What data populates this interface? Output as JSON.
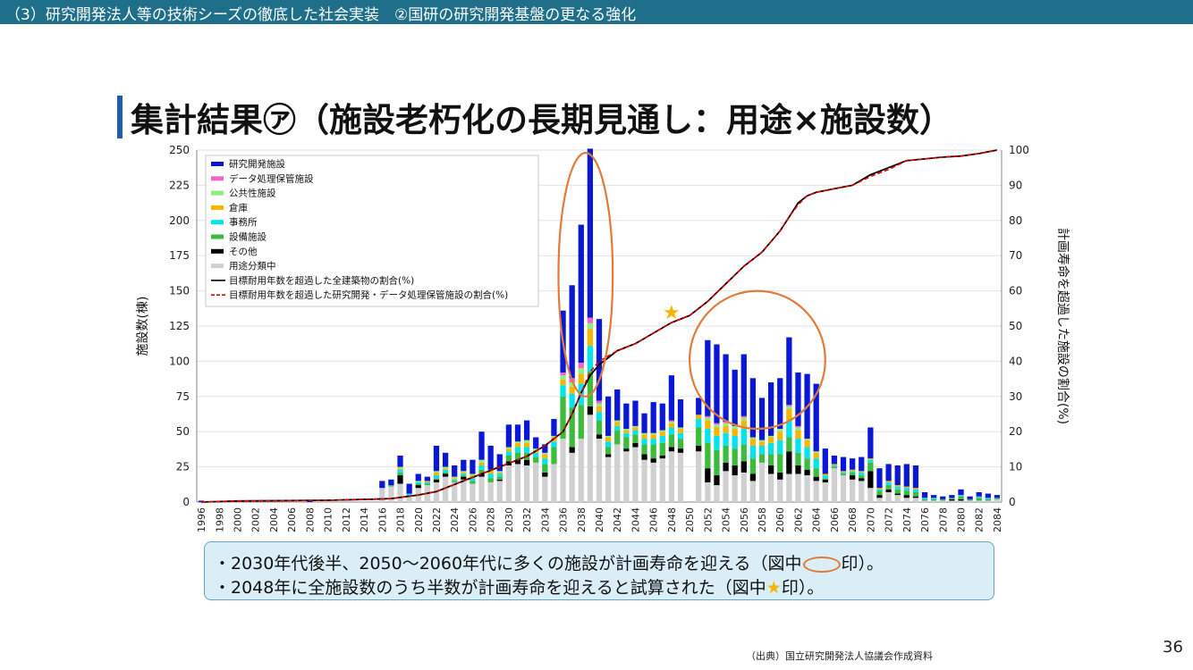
{
  "header": {
    "text": "（3）研究開発法人等の技術シーズの徹底した社会実装　②国研の研究開発基盤の更なる強化"
  },
  "title": "集計結果㋐（施設老朽化の長期見通し：用途×施設数）",
  "note": {
    "line1_a": "・2030年代後半、2050～2060年代に多くの施設が計画寿命を迎える（図中",
    "line1_b": "印）。",
    "line2_a": "・2048年に全施設数のうち半数が計画寿命を迎えると試算された（図中",
    "line2_star": "★",
    "line2_b": "印）。"
  },
  "source": "（出典）国立研究開発法人協議会作成資料",
  "page_number": "36",
  "colors": {
    "header_bg": "#1f6f8b",
    "title_accent": "#1f5fa8",
    "note_bg": "#d9eef7",
    "highlight_oval": "#e07b39",
    "star": "#f2b600"
  },
  "chart_data": {
    "type": "bar",
    "stacked": true,
    "ylabel": "施設数(棟)",
    "y2label": "計画寿命を超過した施設の割合(%)",
    "ylim": [
      0,
      250
    ],
    "y2lim": [
      0,
      100
    ],
    "yticks": [
      0,
      25,
      50,
      75,
      100,
      125,
      150,
      175,
      200,
      225,
      250
    ],
    "y2ticks": [
      0,
      10,
      20,
      30,
      40,
      50,
      60,
      70,
      80,
      90,
      100
    ],
    "grid": true,
    "legend_position": "top-left",
    "x": [
      1996,
      1997,
      1998,
      1999,
      2000,
      2001,
      2002,
      2003,
      2004,
      2005,
      2006,
      2007,
      2008,
      2009,
      2010,
      2011,
      2012,
      2013,
      2014,
      2015,
      2016,
      2017,
      2018,
      2019,
      2020,
      2021,
      2022,
      2023,
      2024,
      2025,
      2026,
      2027,
      2028,
      2029,
      2030,
      2031,
      2032,
      2033,
      2034,
      2035,
      2036,
      2037,
      2038,
      2039,
      2040,
      2041,
      2042,
      2043,
      2044,
      2045,
      2046,
      2047,
      2048,
      2049,
      2050,
      2051,
      2052,
      2053,
      2054,
      2055,
      2056,
      2057,
      2058,
      2059,
      2060,
      2061,
      2062,
      2063,
      2064,
      2065,
      2066,
      2067,
      2068,
      2069,
      2070,
      2071,
      2072,
      2073,
      2074,
      2075,
      2076,
      2077,
      2078,
      2079,
      2080,
      2081,
      2082,
      2083,
      2084
    ],
    "series": [
      {
        "name": "研究開発施設",
        "color": "#0a18d6",
        "values": [
          1,
          0,
          0,
          0,
          0,
          0,
          0,
          0,
          0,
          0,
          0,
          0,
          1,
          0,
          0,
          0,
          0,
          0,
          0,
          0,
          5,
          4,
          8,
          7,
          5,
          3,
          18,
          10,
          8,
          8,
          10,
          20,
          17,
          12,
          16,
          12,
          14,
          8,
          6,
          12,
          44,
          66,
          98,
          120,
          58,
          28,
          22,
          18,
          18,
          14,
          22,
          19,
          32,
          20,
          0,
          12,
          54,
          56,
          48,
          40,
          44,
          42,
          30,
          38,
          36,
          48,
          38,
          46,
          48,
          18,
          6,
          10,
          8,
          10,
          22,
          14,
          12,
          14,
          16,
          16,
          4,
          2,
          2,
          2,
          4,
          2,
          3,
          3,
          2
        ]
      },
      {
        "name": "データ処理保管施設",
        "color": "#ee66cc",
        "values": [
          0,
          0,
          0,
          0,
          0,
          0,
          0,
          0,
          0,
          0,
          0,
          0,
          0,
          0,
          0,
          0,
          0,
          0,
          0,
          0,
          0,
          0,
          0,
          0,
          0,
          0,
          0,
          0,
          0,
          0,
          0,
          0,
          0,
          0,
          0,
          0,
          0,
          0,
          0,
          0,
          2,
          3,
          4,
          4,
          2,
          0,
          0,
          0,
          0,
          0,
          0,
          0,
          1,
          0,
          0,
          0,
          1,
          1,
          1,
          0,
          1,
          0,
          0,
          0,
          0,
          1,
          1,
          0,
          0,
          0,
          0,
          0,
          0,
          0,
          0,
          0,
          0,
          0,
          0,
          0,
          0,
          0,
          0,
          0,
          0,
          0,
          0,
          0,
          0
        ]
      },
      {
        "name": "公共性施設",
        "color": "#8cf07c",
        "values": [
          0,
          0,
          0,
          0,
          0,
          0,
          0,
          0,
          0,
          0,
          0,
          0,
          0,
          0,
          0,
          0,
          0,
          0,
          0,
          0,
          0,
          0,
          1,
          0,
          1,
          0,
          1,
          1,
          1,
          1,
          1,
          2,
          1,
          1,
          1,
          1,
          2,
          1,
          1,
          1,
          3,
          3,
          4,
          4,
          2,
          1,
          1,
          1,
          1,
          1,
          1,
          1,
          1,
          1,
          0,
          0,
          2,
          2,
          2,
          2,
          2,
          1,
          1,
          1,
          2,
          2,
          2,
          1,
          1,
          0,
          0,
          0,
          0,
          0,
          0,
          0,
          0,
          0,
          0,
          0,
          0,
          0,
          0,
          0,
          0,
          0,
          0,
          0,
          0
        ]
      },
      {
        "name": "倉庫",
        "color": "#f7b500",
        "values": [
          0,
          0,
          0,
          0,
          0,
          0,
          0,
          0,
          0,
          0,
          0,
          0,
          0,
          0,
          0,
          0,
          0,
          0,
          0,
          0,
          0,
          0,
          1,
          0,
          0,
          1,
          2,
          1,
          1,
          1,
          2,
          2,
          2,
          1,
          2,
          3,
          3,
          2,
          3,
          3,
          4,
          5,
          7,
          12,
          4,
          3,
          3,
          2,
          2,
          3,
          3,
          3,
          3,
          3,
          0,
          3,
          6,
          6,
          5,
          5,
          6,
          5,
          3,
          4,
          6,
          8,
          6,
          5,
          4,
          1,
          1,
          1,
          1,
          1,
          1,
          1,
          1,
          1,
          1,
          1,
          0,
          0,
          0,
          0,
          0,
          0,
          0,
          0,
          0
        ]
      },
      {
        "name": "事務所",
        "color": "#00e4ee",
        "values": [
          0,
          0,
          0,
          0,
          0,
          0,
          0,
          0,
          0,
          0,
          0,
          0,
          0,
          0,
          0,
          0,
          0,
          0,
          0,
          0,
          0,
          0,
          2,
          1,
          1,
          1,
          2,
          2,
          1,
          1,
          2,
          3,
          3,
          2,
          3,
          4,
          4,
          3,
          4,
          4,
          8,
          10,
          15,
          18,
          6,
          4,
          3,
          3,
          3,
          4,
          4,
          5,
          5,
          4,
          0,
          6,
          10,
          10,
          9,
          9,
          11,
          9,
          6,
          8,
          10,
          12,
          10,
          8,
          7,
          2,
          1,
          1,
          1,
          2,
          2,
          1,
          2,
          2,
          2,
          2,
          1,
          1,
          0,
          0,
          1,
          0,
          1,
          1,
          0
        ]
      },
      {
        "name": "設備施設",
        "color": "#3cbb3c",
        "values": [
          0,
          0,
          0,
          0,
          0,
          0,
          0,
          0,
          0,
          0,
          0,
          0,
          0,
          0,
          0,
          0,
          0,
          0,
          0,
          0,
          0,
          1,
          2,
          1,
          1,
          1,
          1,
          1,
          1,
          1,
          2,
          3,
          3,
          2,
          4,
          5,
          5,
          4,
          6,
          12,
          30,
          28,
          24,
          25,
          10,
          5,
          10,
          8,
          6,
          7,
          10,
          9,
          9,
          7,
          0,
          13,
          18,
          18,
          12,
          12,
          12,
          11,
          6,
          8,
          13,
          10,
          9,
          8,
          6,
          1,
          1,
          1,
          2,
          2,
          6,
          3,
          3,
          3,
          3,
          3,
          1,
          1,
          1,
          1,
          2,
          1,
          2,
          1,
          1
        ]
      },
      {
        "name": "その他",
        "color": "#000000",
        "values": [
          0,
          0,
          0,
          0,
          0,
          0,
          0,
          0,
          0,
          0,
          0,
          0,
          0,
          0,
          0,
          0,
          0,
          0,
          0,
          0,
          0,
          0,
          6,
          0,
          2,
          0,
          2,
          2,
          0,
          2,
          0,
          2,
          0,
          1,
          3,
          3,
          4,
          0,
          3,
          0,
          0,
          4,
          0,
          6,
          3,
          2,
          0,
          2,
          3,
          4,
          3,
          2,
          3,
          3,
          0,
          4,
          10,
          7,
          6,
          7,
          8,
          5,
          0,
          6,
          5,
          16,
          6,
          4,
          3,
          2,
          0,
          0,
          3,
          2,
          12,
          2,
          2,
          1,
          2,
          1,
          0,
          0,
          0,
          1,
          1,
          0,
          0,
          0,
          0
        ]
      },
      {
        "name": "用途分類中",
        "color": "#d0d0d0",
        "values": [
          0,
          0,
          0,
          0,
          0,
          0,
          0,
          0,
          0,
          0,
          0,
          0,
          0,
          0,
          0,
          0,
          0,
          0,
          0,
          0,
          10,
          11,
          13,
          4,
          10,
          12,
          14,
          18,
          14,
          16,
          13,
          18,
          14,
          15,
          26,
          27,
          26,
          28,
          18,
          27,
          45,
          35,
          45,
          62,
          45,
          32,
          41,
          36,
          39,
          30,
          28,
          31,
          36,
          35,
          0,
          36,
          14,
          12,
          22,
          19,
          21,
          15,
          28,
          20,
          16,
          20,
          20,
          19,
          15,
          14,
          24,
          19,
          16,
          15,
          10,
          3,
          7,
          5,
          3,
          3,
          1,
          1,
          1,
          1,
          1,
          1,
          1,
          1,
          2
        ]
      }
    ],
    "lines": [
      {
        "name": "目標耐用年数を超過した全建築物の割合(%)",
        "axis": "right",
        "color": "#000000",
        "points": [
          [
            1996,
            0
          ],
          [
            2000,
            0.3
          ],
          [
            2010,
            0.5
          ],
          [
            2015,
            0.8
          ],
          [
            2017,
            1
          ],
          [
            2020,
            2
          ],
          [
            2022,
            3
          ],
          [
            2024,
            5
          ],
          [
            2026,
            7
          ],
          [
            2028,
            9
          ],
          [
            2030,
            11
          ],
          [
            2032,
            13
          ],
          [
            2034,
            16
          ],
          [
            2036,
            20
          ],
          [
            2037,
            25
          ],
          [
            2038,
            31
          ],
          [
            2039,
            36
          ],
          [
            2040,
            39
          ],
          [
            2041,
            41
          ],
          [
            2042,
            43
          ],
          [
            2044,
            45
          ],
          [
            2046,
            48
          ],
          [
            2048,
            51
          ],
          [
            2050,
            53
          ],
          [
            2052,
            57
          ],
          [
            2054,
            62
          ],
          [
            2056,
            67
          ],
          [
            2058,
            71
          ],
          [
            2060,
            77
          ],
          [
            2061,
            81
          ],
          [
            2062,
            85
          ],
          [
            2063,
            87
          ],
          [
            2064,
            88
          ],
          [
            2066,
            89
          ],
          [
            2068,
            90
          ],
          [
            2070,
            93
          ],
          [
            2072,
            95
          ],
          [
            2074,
            97
          ],
          [
            2076,
            97.5
          ],
          [
            2078,
            98
          ],
          [
            2080,
            98.3
          ],
          [
            2082,
            99
          ],
          [
            2084,
            100
          ]
        ]
      },
      {
        "name": "目標耐用年数を超過した研究開発・データ処理保管施設の割合(%)",
        "axis": "right",
        "color": "#e00000",
        "dashed": true,
        "points": [
          [
            1996,
            0
          ],
          [
            2000,
            0.3
          ],
          [
            2010,
            0.5
          ],
          [
            2015,
            0.8
          ],
          [
            2017,
            1
          ],
          [
            2020,
            2
          ],
          [
            2022,
            3
          ],
          [
            2024,
            5
          ],
          [
            2026,
            7
          ],
          [
            2028,
            9
          ],
          [
            2030,
            11
          ],
          [
            2032,
            13
          ],
          [
            2034,
            16
          ],
          [
            2036,
            20
          ],
          [
            2037,
            25
          ],
          [
            2038,
            31
          ],
          [
            2039,
            37
          ],
          [
            2040,
            40
          ],
          [
            2041,
            41.5
          ],
          [
            2042,
            43
          ],
          [
            2044,
            45
          ],
          [
            2046,
            48
          ],
          [
            2048,
            51
          ],
          [
            2050,
            53
          ],
          [
            2052,
            57
          ],
          [
            2054,
            62
          ],
          [
            2056,
            67
          ],
          [
            2058,
            71
          ],
          [
            2060,
            77
          ],
          [
            2061,
            81
          ],
          [
            2062,
            84.5
          ],
          [
            2063,
            87
          ],
          [
            2064,
            88
          ],
          [
            2066,
            89
          ],
          [
            2068,
            90
          ],
          [
            2070,
            92.5
          ],
          [
            2072,
            94.5
          ],
          [
            2074,
            97
          ],
          [
            2076,
            97.5
          ],
          [
            2078,
            98
          ],
          [
            2080,
            98.3
          ],
          [
            2082,
            99
          ],
          [
            2084,
            100
          ]
        ]
      }
    ],
    "x_tick_labels": [
      "1996",
      "1998",
      "2000",
      "2002",
      "2004",
      "2006",
      "2008",
      "2010",
      "2012",
      "2014",
      "2016",
      "2018",
      "2020",
      "2022",
      "2024",
      "2026",
      "2028",
      "2030",
      "2032",
      "2034",
      "2036",
      "2038",
      "2040",
      "2042",
      "2044",
      "2046",
      "2048",
      "2050",
      "2052",
      "2054",
      "2056",
      "2058",
      "2060",
      "2062",
      "2064",
      "2066",
      "2068",
      "2070",
      "2072",
      "2074",
      "2076",
      "2078",
      "2080",
      "2082",
      "2084"
    ],
    "annotations": [
      {
        "type": "oval",
        "x_range": [
          2035.5,
          2041.5
        ],
        "y_range": [
          75,
          248
        ],
        "color": "#e07b39"
      },
      {
        "type": "oval",
        "x_range": [
          2050,
          2065
        ],
        "y_range": [
          52,
          150
        ],
        "color": "#e07b39"
      },
      {
        "type": "star",
        "x": 2048,
        "y2": 54,
        "color": "#f2b600"
      }
    ]
  }
}
